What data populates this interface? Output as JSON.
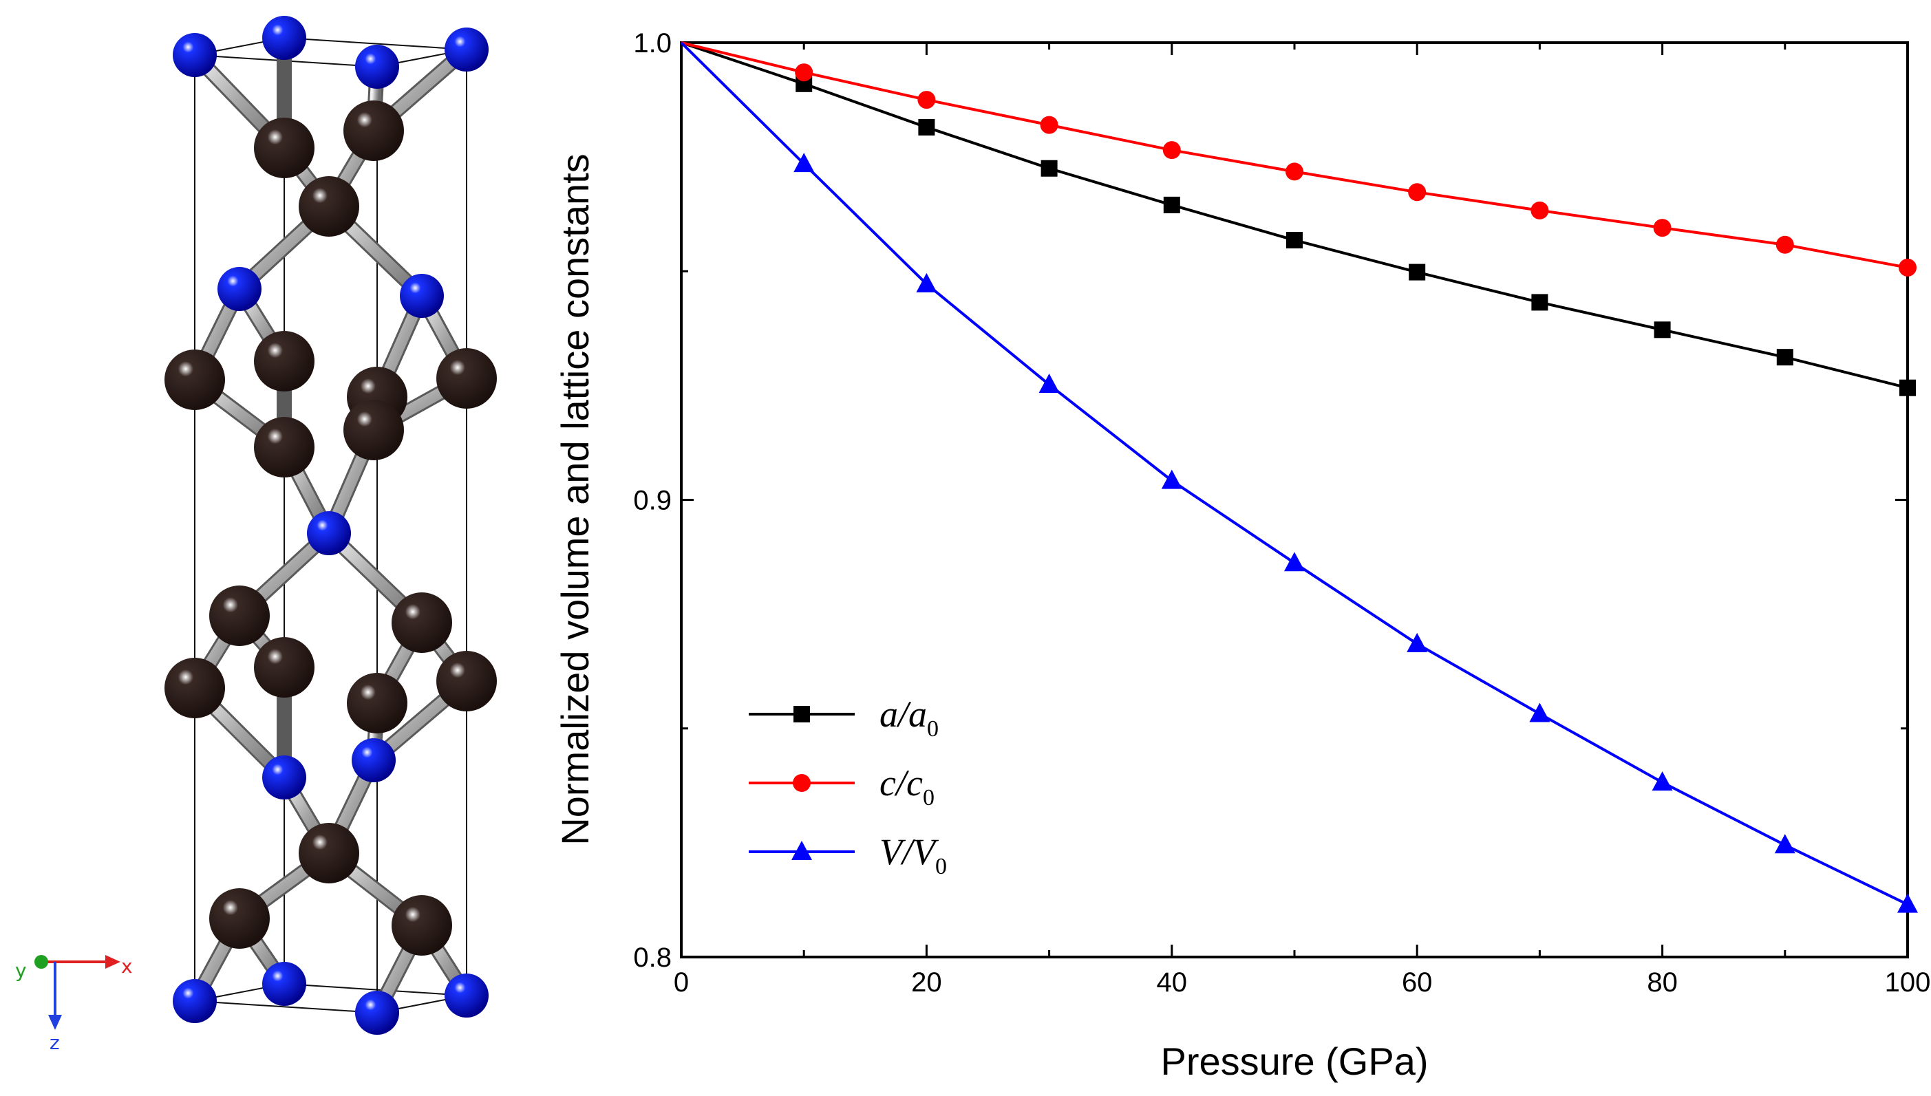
{
  "structure_panel": {
    "atoms": {
      "metal_color": "#1a33ff",
      "nonmetal_color": "#1a0f0c"
    },
    "axes_triad": {
      "y": "y",
      "x": "x",
      "z": "z"
    }
  },
  "chart_data": {
    "type": "line",
    "title": "",
    "xlabel": "Pressure (GPa)",
    "ylabel": "Normalized volume and lattice constants",
    "xlim": [
      0,
      100
    ],
    "ylim": [
      0.8,
      1.0
    ],
    "xticks": [
      "0",
      "20",
      "40",
      "60",
      "80",
      "100"
    ],
    "yticks": [
      "0.8",
      "0.9",
      "1.0"
    ],
    "x": [
      0,
      10,
      20,
      30,
      40,
      50,
      60,
      70,
      80,
      90,
      100
    ],
    "legend_position": "lower-left",
    "grid": false,
    "series": [
      {
        "name": "a/a0",
        "label_main": "a/a",
        "label_sub": "0",
        "color": "#000000",
        "marker": "square",
        "values": [
          1.0,
          0.991,
          0.9815,
          0.9725,
          0.9645,
          0.9568,
          0.9498,
          0.9432,
          0.9372,
          0.9312,
          0.9245
        ]
      },
      {
        "name": "c/c0",
        "label_main": "c/c",
        "label_sub": "0",
        "color": "#ff0000",
        "marker": "circle",
        "values": [
          1.0,
          0.9935,
          0.9875,
          0.982,
          0.9765,
          0.9718,
          0.9673,
          0.9633,
          0.9595,
          0.9558,
          0.9508
        ]
      },
      {
        "name": "V/V0",
        "label_main": "V/V",
        "label_sub": "0",
        "color": "#0000ff",
        "marker": "triangle",
        "values": [
          1.0,
          0.9735,
          0.9472,
          0.9252,
          0.9042,
          0.8862,
          0.8685,
          0.8532,
          0.8382,
          0.8245,
          0.8115
        ]
      }
    ]
  }
}
